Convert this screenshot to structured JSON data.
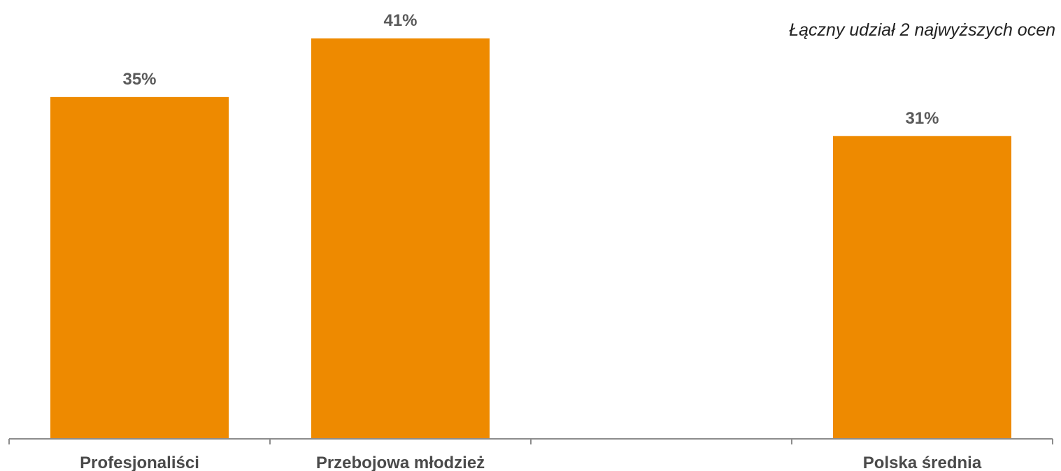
{
  "chart_data": {
    "type": "bar",
    "annotation": "Łączny udział 2 najwyższych ocen",
    "categories": [
      "Profesjonaliści",
      "Przebojowa młodzież",
      "",
      "Polska średnia"
    ],
    "values": [
      35,
      41,
      null,
      31
    ],
    "value_labels": [
      "35%",
      "41%",
      "",
      "31%"
    ],
    "bar_color": "#ee8a00",
    "axis_color": "#8c8c8c",
    "label_color": "#5a5a5a",
    "ylim": [
      0,
      45
    ],
    "grid": false,
    "legend": "none"
  }
}
